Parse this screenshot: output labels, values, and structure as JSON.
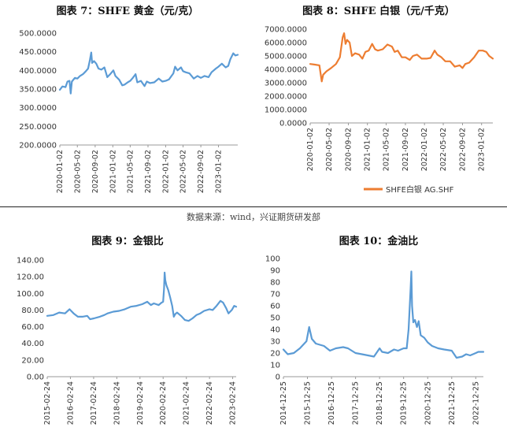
{
  "source_note": "数据来源：wind，兴证期货研发部",
  "chart_data": [
    {
      "id": "c7",
      "type": "line",
      "title": "图表 7：SHFE 黄金（元/克）",
      "xlabel": "",
      "ylabel": "",
      "color": "#5b9bd5",
      "ylim": [
        200,
        500
      ],
      "yticks": [
        200,
        250,
        300,
        350,
        400,
        450,
        500
      ],
      "ydecimals": 4,
      "xlim": [
        "2020-01-02",
        "2023-05-15"
      ],
      "xticks": [
        "2020-01-02",
        "2020-05-02",
        "2020-09-02",
        "2021-01-02",
        "2021-05-02",
        "2021-09-02",
        "2022-01-02",
        "2022-05-02",
        "2022-09-02",
        "2023-01-02"
      ],
      "legend": null,
      "series": [
        {
          "name": "",
          "points": [
            [
              "2020-01-02",
              348
            ],
            [
              "2020-01-20",
              357
            ],
            [
              "2020-02-10",
              355
            ],
            [
              "2020-02-24",
              370
            ],
            [
              "2020-03-09",
              372
            ],
            [
              "2020-03-17",
              338
            ],
            [
              "2020-03-25",
              370
            ],
            [
              "2020-04-15",
              380
            ],
            [
              "2020-05-02",
              378
            ],
            [
              "2020-05-20",
              385
            ],
            [
              "2020-06-10",
              390
            ],
            [
              "2020-06-30",
              398
            ],
            [
              "2020-07-15",
              405
            ],
            [
              "2020-07-28",
              428
            ],
            [
              "2020-08-06",
              448
            ],
            [
              "2020-08-12",
              420
            ],
            [
              "2020-08-25",
              425
            ],
            [
              "2020-09-10",
              418
            ],
            [
              "2020-09-25",
              405
            ],
            [
              "2020-10-15",
              402
            ],
            [
              "2020-11-05",
              408
            ],
            [
              "2020-11-25",
              382
            ],
            [
              "2020-12-15",
              390
            ],
            [
              "2021-01-06",
              400
            ],
            [
              "2021-01-20",
              385
            ],
            [
              "2021-02-15",
              375
            ],
            [
              "2021-03-08",
              360
            ],
            [
              "2021-03-25",
              362
            ],
            [
              "2021-04-15",
              368
            ],
            [
              "2021-05-02",
              372
            ],
            [
              "2021-05-20",
              380
            ],
            [
              "2021-06-08",
              390
            ],
            [
              "2021-06-20",
              368
            ],
            [
              "2021-07-15",
              372
            ],
            [
              "2021-08-09",
              358
            ],
            [
              "2021-08-25",
              370
            ],
            [
              "2021-09-15",
              366
            ],
            [
              "2021-10-15",
              368
            ],
            [
              "2021-11-15",
              378
            ],
            [
              "2021-12-10",
              370
            ],
            [
              "2022-01-02",
              372
            ],
            [
              "2022-01-25",
              376
            ],
            [
              "2022-02-24",
              392
            ],
            [
              "2022-03-08",
              410
            ],
            [
              "2022-03-25",
              400
            ],
            [
              "2022-04-18",
              408
            ],
            [
              "2022-05-02",
              398
            ],
            [
              "2022-05-20",
              395
            ],
            [
              "2022-06-15",
              392
            ],
            [
              "2022-07-15",
              378
            ],
            [
              "2022-08-10",
              385
            ],
            [
              "2022-09-02",
              380
            ],
            [
              "2022-09-28",
              385
            ],
            [
              "2022-10-25",
              382
            ],
            [
              "2022-11-15",
              395
            ],
            [
              "2022-12-15",
              405
            ],
            [
              "2023-01-02",
              410
            ],
            [
              "2023-01-25",
              418
            ],
            [
              "2023-02-20",
              408
            ],
            [
              "2023-03-10",
              412
            ],
            [
              "2023-03-25",
              430
            ],
            [
              "2023-04-14",
              446
            ],
            [
              "2023-04-28",
              440
            ],
            [
              "2023-05-15",
              442
            ]
          ]
        }
      ]
    },
    {
      "id": "c8",
      "type": "line",
      "title": "图表 8：SHFE 白银（元/千克）",
      "xlabel": "",
      "ylabel": "",
      "color": "#ed7d31",
      "ylim": [
        0,
        7000
      ],
      "yticks": [
        0,
        1000,
        2000,
        3000,
        4000,
        5000,
        6000,
        7000
      ],
      "ydecimals": 4,
      "xlim": [
        "2020-01-02",
        "2023-03-15"
      ],
      "xticks": [
        "2020-01-02",
        "2020-05-02",
        "2020-09-02",
        "2021-01-02",
        "2021-05-02",
        "2021-09-02",
        "2022-01-02",
        "2022-05-02",
        "2022-09-02",
        "2023-01-02"
      ],
      "legend": "bottom",
      "series": [
        {
          "name": "SHFE白银 AG.SHF",
          "points": [
            [
              "2020-01-02",
              4400
            ],
            [
              "2020-02-01",
              4350
            ],
            [
              "2020-03-01",
              4300
            ],
            [
              "2020-03-16",
              3100
            ],
            [
              "2020-03-25",
              3600
            ],
            [
              "2020-04-15",
              3850
            ],
            [
              "2020-05-15",
              4100
            ],
            [
              "2020-06-15",
              4400
            ],
            [
              "2020-07-10",
              4900
            ],
            [
              "2020-07-28",
              6400
            ],
            [
              "2020-08-06",
              6700
            ],
            [
              "2020-08-15",
              5900
            ],
            [
              "2020-08-25",
              6200
            ],
            [
              "2020-09-10",
              6000
            ],
            [
              "2020-09-25",
              5000
            ],
            [
              "2020-10-15",
              5200
            ],
            [
              "2020-11-10",
              5100
            ],
            [
              "2020-12-01",
              4800
            ],
            [
              "2020-12-20",
              5300
            ],
            [
              "2021-01-10",
              5400
            ],
            [
              "2021-02-01",
              5900
            ],
            [
              "2021-02-20",
              5500
            ],
            [
              "2021-03-10",
              5400
            ],
            [
              "2021-04-10",
              5500
            ],
            [
              "2021-05-10",
              5850
            ],
            [
              "2021-06-08",
              5700
            ],
            [
              "2021-06-25",
              5300
            ],
            [
              "2021-07-15",
              5400
            ],
            [
              "2021-08-10",
              4900
            ],
            [
              "2021-09-02",
              4900
            ],
            [
              "2021-09-30",
              4700
            ],
            [
              "2021-10-20",
              5000
            ],
            [
              "2021-11-15",
              5100
            ],
            [
              "2021-12-15",
              4800
            ],
            [
              "2022-01-15",
              4800
            ],
            [
              "2022-02-10",
              4850
            ],
            [
              "2022-03-08",
              5400
            ],
            [
              "2022-03-25",
              5100
            ],
            [
              "2022-04-20",
              4900
            ],
            [
              "2022-05-15",
              4600
            ],
            [
              "2022-06-15",
              4600
            ],
            [
              "2022-07-15",
              4200
            ],
            [
              "2022-08-15",
              4300
            ],
            [
              "2022-09-02",
              4100
            ],
            [
              "2022-09-20",
              4400
            ],
            [
              "2022-10-15",
              4500
            ],
            [
              "2022-11-15",
              4900
            ],
            [
              "2022-12-15",
              5400
            ],
            [
              "2023-01-10",
              5400
            ],
            [
              "2023-02-01",
              5300
            ],
            [
              "2023-02-20",
              5000
            ],
            [
              "2023-03-15",
              4800
            ]
          ]
        }
      ]
    },
    {
      "id": "c9",
      "type": "line",
      "title": "图表 9：金银比",
      "xlabel": "",
      "ylabel": "",
      "color": "#5b9bd5",
      "ylim": [
        0,
        140
      ],
      "yticks": [
        0,
        20,
        40,
        60,
        80,
        100,
        120,
        140
      ],
      "ydecimals": 2,
      "xlim": [
        "2015-02-24",
        "2023-04-20"
      ],
      "xticks": [
        "2015-02-24",
        "2016-02-24",
        "2017-02-24",
        "2018-02-24",
        "2019-02-24",
        "2020-02-24",
        "2021-02-24",
        "2022-02-24",
        "2023-02-24"
      ],
      "legend": null,
      "series": [
        {
          "name": "",
          "points": [
            [
              "2015-02-24",
              73
            ],
            [
              "2015-06-01",
              74
            ],
            [
              "2015-09-01",
              77
            ],
            [
              "2015-12-01",
              76
            ],
            [
              "2016-02-10",
              81
            ],
            [
              "2016-04-15",
              76
            ],
            [
              "2016-06-20",
              72
            ],
            [
              "2016-09-01",
              72
            ],
            [
              "2016-11-15",
              73
            ],
            [
              "2016-12-30",
              69
            ],
            [
              "2017-03-01",
              70
            ],
            [
              "2017-06-01",
              72
            ],
            [
              "2017-08-10",
              74
            ],
            [
              "2017-10-01",
              76
            ],
            [
              "2018-01-01",
              78
            ],
            [
              "2018-04-01",
              79
            ],
            [
              "2018-07-01",
              81
            ],
            [
              "2018-10-01",
              84
            ],
            [
              "2019-01-01",
              85
            ],
            [
              "2019-04-01",
              87
            ],
            [
              "2019-06-20",
              90
            ],
            [
              "2019-08-15",
              86
            ],
            [
              "2019-10-01",
              88
            ],
            [
              "2019-12-15",
              86
            ],
            [
              "2020-02-01",
              89
            ],
            [
              "2020-02-24",
              90
            ],
            [
              "2020-03-10",
              106
            ],
            [
              "2020-03-18",
              125
            ],
            [
              "2020-03-28",
              116
            ],
            [
              "2020-04-15",
              110
            ],
            [
              "2020-05-15",
              104
            ],
            [
              "2020-06-15",
              95
            ],
            [
              "2020-07-15",
              85
            ],
            [
              "2020-08-10",
              72
            ],
            [
              "2020-09-01",
              75
            ],
            [
              "2020-10-01",
              77
            ],
            [
              "2020-11-01",
              75
            ],
            [
              "2020-12-01",
              73
            ],
            [
              "2021-02-01",
              68
            ],
            [
              "2021-04-01",
              67
            ],
            [
              "2021-06-01",
              70
            ],
            [
              "2021-08-01",
              74
            ],
            [
              "2021-10-01",
              76
            ],
            [
              "2021-12-01",
              79
            ],
            [
              "2022-02-24",
              81
            ],
            [
              "2022-04-15",
              80
            ],
            [
              "2022-06-15",
              85
            ],
            [
              "2022-08-15",
              91
            ],
            [
              "2022-09-25",
              89
            ],
            [
              "2022-11-15",
              82
            ],
            [
              "2022-12-20",
              76
            ],
            [
              "2023-02-10",
              80
            ],
            [
              "2023-03-20",
              85
            ],
            [
              "2023-04-20",
              84
            ]
          ]
        }
      ]
    },
    {
      "id": "c10",
      "type": "line",
      "title": "图表 10：金油比",
      "xlabel": "",
      "ylabel": "",
      "color": "#5b9bd5",
      "ylim": [
        0,
        100
      ],
      "yticks": [
        0,
        10,
        20,
        30,
        40,
        50,
        60,
        70,
        80,
        90,
        100
      ],
      "ydecimals": 0,
      "xlim": [
        "2014-12-25",
        "2023-04-20"
      ],
      "xticks": [
        "2014-12-25",
        "2015-12-25",
        "2016-12-25",
        "2017-12-25",
        "2018-12-25",
        "2019-12-25",
        "2020-12-25",
        "2021-12-25",
        "2022-12-25"
      ],
      "legend": null,
      "series": [
        {
          "name": "",
          "points": [
            [
              "2014-12-25",
              23
            ],
            [
              "2015-03-01",
              19
            ],
            [
              "2015-06-01",
              20
            ],
            [
              "2015-09-01",
              24
            ],
            [
              "2015-12-10",
              30
            ],
            [
              "2016-01-20",
              42
            ],
            [
              "2016-03-01",
              32
            ],
            [
              "2016-05-01",
              28
            ],
            [
              "2016-07-01",
              27
            ],
            [
              "2016-09-01",
              26
            ],
            [
              "2016-12-01",
              22
            ],
            [
              "2017-03-01",
              24
            ],
            [
              "2017-06-20",
              25
            ],
            [
              "2017-09-01",
              24
            ],
            [
              "2017-12-25",
              20
            ],
            [
              "2018-04-01",
              19
            ],
            [
              "2018-07-01",
              18
            ],
            [
              "2018-10-01",
              17
            ],
            [
              "2018-12-25",
              24
            ],
            [
              "2019-02-01",
              21
            ],
            [
              "2019-05-01",
              20
            ],
            [
              "2019-08-01",
              23
            ],
            [
              "2019-10-01",
              22
            ],
            [
              "2019-12-25",
              24
            ],
            [
              "2020-02-10",
              24
            ],
            [
              "2020-03-10",
              40
            ],
            [
              "2020-04-10",
              75
            ],
            [
              "2020-04-21",
              89
            ],
            [
              "2020-05-01",
              60
            ],
            [
              "2020-05-20",
              46
            ],
            [
              "2020-06-15",
              48
            ],
            [
              "2020-07-15",
              42
            ],
            [
              "2020-08-10",
              47
            ],
            [
              "2020-09-10",
              35
            ],
            [
              "2020-11-01",
              33
            ],
            [
              "2020-12-25",
              29
            ],
            [
              "2021-03-01",
              26
            ],
            [
              "2021-06-01",
              24
            ],
            [
              "2021-09-01",
              23
            ],
            [
              "2021-12-25",
              22
            ],
            [
              "2022-03-08",
              16
            ],
            [
              "2022-06-01",
              17
            ],
            [
              "2022-08-01",
              19
            ],
            [
              "2022-10-01",
              18
            ],
            [
              "2022-12-25",
              20
            ],
            [
              "2023-02-01",
              21
            ],
            [
              "2023-04-20",
              21
            ]
          ]
        }
      ]
    }
  ]
}
